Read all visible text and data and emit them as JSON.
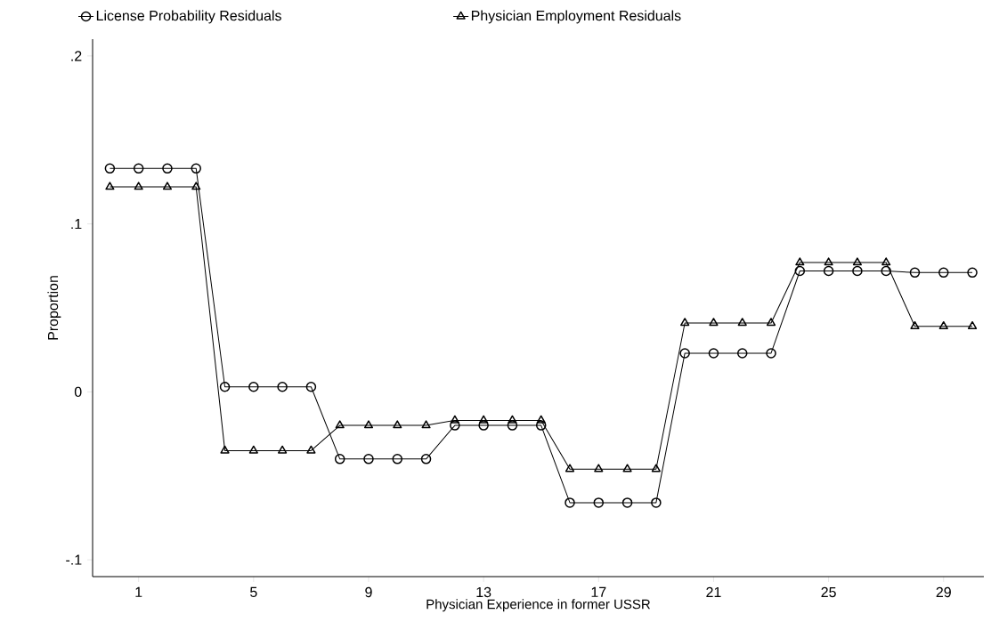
{
  "chart_data": {
    "type": "line",
    "xlabel": "Physician Experience in former USSR",
    "ylabel": "Proportion",
    "x": [
      0,
      1,
      2,
      3,
      4,
      5,
      6,
      7,
      8,
      9,
      10,
      11,
      12,
      13,
      14,
      15,
      16,
      17,
      18,
      19,
      20,
      21,
      22,
      23,
      24,
      25,
      26,
      27,
      28,
      29,
      30
    ],
    "series": [
      {
        "name": "License Probability Residuals",
        "color": "#000000",
        "marker": "circle",
        "values": [
          0.133,
          0.133,
          0.133,
          0.133,
          0.003,
          0.003,
          0.003,
          0.003,
          -0.04,
          -0.04,
          -0.04,
          -0.04,
          -0.02,
          -0.02,
          -0.02,
          -0.02,
          -0.066,
          -0.066,
          -0.066,
          -0.066,
          0.023,
          0.023,
          0.023,
          0.023,
          0.072,
          0.072,
          0.072,
          0.072,
          0.071,
          0.071,
          0.071
        ]
      },
      {
        "name": "Physician Employment Residuals",
        "color": "#000000",
        "marker": "triangle",
        "values": [
          0.122,
          0.122,
          0.122,
          0.122,
          -0.035,
          -0.035,
          -0.035,
          -0.035,
          -0.02,
          -0.02,
          -0.02,
          -0.02,
          -0.017,
          -0.017,
          -0.017,
          -0.017,
          -0.046,
          -0.046,
          -0.046,
          -0.046,
          0.041,
          0.041,
          0.041,
          0.041,
          0.077,
          0.077,
          0.077,
          0.077,
          0.039,
          0.039,
          0.039
        ]
      }
    ],
    "xlim": [
      -0.6,
      30.4
    ],
    "ylim": [
      -0.11,
      0.21
    ],
    "xticks": [
      1,
      5,
      9,
      13,
      17,
      21,
      25,
      29
    ],
    "yticks": [
      {
        "value": -0.1,
        "label": "-.1"
      },
      {
        "value": 0,
        "label": "0"
      },
      {
        "value": 0.1,
        "label": ".1"
      },
      {
        "value": 0.2,
        "label": ".2"
      }
    ],
    "grid": false,
    "legend": "top",
    "line_style": "solid"
  }
}
